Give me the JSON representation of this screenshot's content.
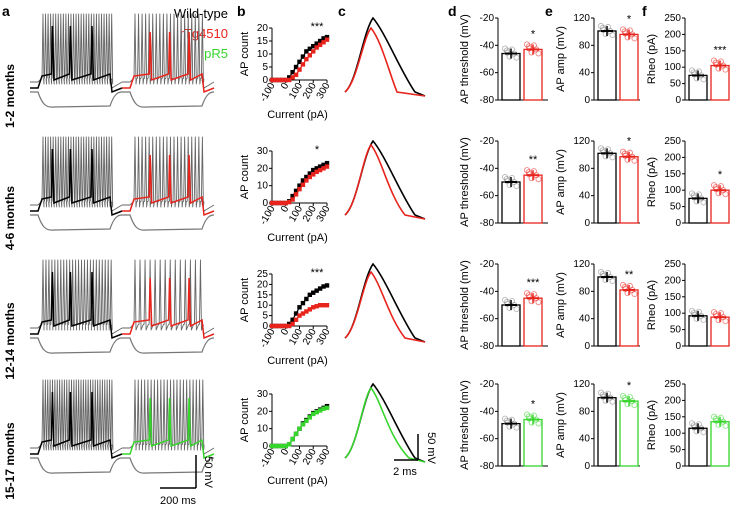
{
  "panel_letters": [
    "a",
    "b",
    "c",
    "d",
    "e",
    "f"
  ],
  "row_labels": [
    "1-2 months",
    "4-6 months",
    "12-14 months",
    "15-17 months"
  ],
  "legend": {
    "items": [
      {
        "label": "Wild-type",
        "color": "#000000"
      },
      {
        "label": "rTg4510",
        "color": "#e8231c"
      },
      {
        "label": "pR5",
        "color": "#36d52c"
      }
    ]
  },
  "scale_bars": {
    "voltage": "50 mV",
    "time": "200 ms",
    "ap_time": "2 ms",
    "ap_voltage": "50 mV"
  },
  "colors": {
    "wt": "#000000",
    "rtg": "#e8231c",
    "pr5": "#36d52c",
    "trace_gray": "#666666"
  },
  "chart_data": [
    {
      "panel": "b",
      "row": 0,
      "type": "line",
      "xlabel": "Current (pA)",
      "ylabel": "AP count",
      "xticks": [
        -100,
        0,
        100,
        200,
        300
      ],
      "yticks": [
        0,
        5,
        10,
        15,
        20
      ],
      "ylim": [
        0,
        20
      ],
      "sig": "***",
      "x": [
        -100,
        -75,
        -50,
        -25,
        0,
        25,
        50,
        75,
        100,
        125,
        150,
        175,
        200,
        225,
        250,
        275,
        300
      ],
      "series": [
        {
          "name": "Wild-type",
          "values": [
            0,
            0,
            0,
            0,
            0,
            1,
            3,
            5,
            7,
            9,
            11,
            12,
            13,
            14,
            15,
            16,
            16.5
          ]
        },
        {
          "name": "rTg4510",
          "values": [
            0,
            0,
            0,
            0,
            0,
            0,
            1,
            2,
            4,
            6,
            8,
            9.5,
            11,
            12.5,
            13.5,
            14.5,
            15.5
          ]
        }
      ]
    },
    {
      "panel": "b",
      "row": 1,
      "type": "line",
      "xlabel": "Current (pA)",
      "ylabel": "AP count",
      "xticks": [
        -100,
        0,
        100,
        200,
        300
      ],
      "yticks": [
        0,
        10,
        20,
        30
      ],
      "ylim": [
        0,
        30
      ],
      "sig": "*",
      "x": [
        -100,
        -75,
        -50,
        -25,
        0,
        25,
        50,
        75,
        100,
        125,
        150,
        175,
        200,
        225,
        250,
        275,
        300
      ],
      "series": [
        {
          "name": "Wild-type",
          "values": [
            0,
            0,
            0,
            0,
            0,
            1,
            4,
            7,
            10,
            13,
            15,
            17,
            19,
            20,
            21,
            22,
            23
          ]
        },
        {
          "name": "rTg4510",
          "values": [
            0,
            0,
            0,
            0,
            0,
            0.5,
            2,
            5,
            8,
            10.5,
            13,
            15,
            16.5,
            18,
            19,
            20,
            21
          ]
        }
      ]
    },
    {
      "panel": "b",
      "row": 2,
      "type": "line",
      "xlabel": "Current (pA)",
      "ylabel": "AP count",
      "xticks": [
        -100,
        0,
        100,
        200,
        300
      ],
      "yticks": [
        0,
        5,
        10,
        15,
        20,
        25
      ],
      "ylim": [
        0,
        25
      ],
      "sig": "***",
      "x": [
        -100,
        -75,
        -50,
        -25,
        0,
        25,
        50,
        75,
        100,
        125,
        150,
        175,
        200,
        225,
        250,
        275,
        300
      ],
      "series": [
        {
          "name": "Wild-type",
          "values": [
            0,
            0,
            0,
            0,
            0,
            1,
            3,
            6,
            9,
            11,
            13,
            15,
            16,
            17,
            18,
            19,
            19.5
          ]
        },
        {
          "name": "rTg4510",
          "values": [
            0,
            0,
            0,
            0,
            0,
            0,
            1,
            3,
            5,
            6,
            7,
            8,
            9,
            9.5,
            10,
            10,
            10
          ]
        }
      ]
    },
    {
      "panel": "b",
      "row": 3,
      "type": "line",
      "xlabel": "Current (pA)",
      "ylabel": "AP count",
      "xticks": [
        -100,
        0,
        100,
        200,
        300
      ],
      "yticks": [
        0,
        10,
        20,
        30
      ],
      "ylim": [
        0,
        30
      ],
      "sig": "",
      "x": [
        -100,
        -75,
        -50,
        -25,
        0,
        25,
        50,
        75,
        100,
        125,
        150,
        175,
        200,
        225,
        250,
        275,
        300
      ],
      "series": [
        {
          "name": "Wild-type",
          "values": [
            0,
            0,
            0,
            0,
            0,
            1,
            4,
            7,
            10,
            13,
            15,
            17,
            19,
            20,
            21,
            22,
            23
          ]
        },
        {
          "name": "pR5",
          "values": [
            0,
            0,
            0,
            0,
            0,
            1,
            4,
            7,
            10,
            12.5,
            14.5,
            16.5,
            18.5,
            19.5,
            20.5,
            21.5,
            22
          ]
        }
      ]
    },
    {
      "panel": "d",
      "row": 0,
      "type": "bar",
      "ylabel": "AP threshold (mV)",
      "yticks": [
        -80,
        -60,
        -40,
        -20
      ],
      "ylim": [
        -80,
        -20
      ],
      "sig": "*",
      "categories": [
        "Wild-type",
        "rTg4510"
      ],
      "values": [
        -46,
        -43
      ]
    },
    {
      "panel": "d",
      "row": 1,
      "type": "bar",
      "ylabel": "AP threshold (mV)",
      "yticks": [
        -80,
        -60,
        -40,
        -20
      ],
      "ylim": [
        -80,
        -20
      ],
      "sig": "**",
      "categories": [
        "Wild-type",
        "rTg4510"
      ],
      "values": [
        -50,
        -45
      ]
    },
    {
      "panel": "d",
      "row": 2,
      "type": "bar",
      "ylabel": "AP threshold (mV)",
      "yticks": [
        -80,
        -60,
        -40,
        -20
      ],
      "ylim": [
        -80,
        -20
      ],
      "sig": "***",
      "categories": [
        "Wild-type",
        "rTg4510"
      ],
      "values": [
        -50,
        -45
      ]
    },
    {
      "panel": "d",
      "row": 3,
      "type": "bar",
      "ylabel": "AP threshold (mV)",
      "yticks": [
        -80,
        -60,
        -40,
        -20
      ],
      "ylim": [
        -80,
        -20
      ],
      "sig": "*",
      "categories": [
        "Wild-type",
        "pR5"
      ],
      "values": [
        -49,
        -46
      ]
    },
    {
      "panel": "e",
      "row": 0,
      "type": "bar",
      "ylabel": "AP amp (mV)",
      "yticks": [
        0,
        40,
        80,
        120
      ],
      "ylim": [
        0,
        120
      ],
      "sig": "*",
      "categories": [
        "Wild-type",
        "rTg4510"
      ],
      "values": [
        101,
        96
      ]
    },
    {
      "panel": "e",
      "row": 1,
      "type": "bar",
      "ylabel": "AP amp (mV)",
      "yticks": [
        0,
        40,
        80,
        120
      ],
      "ylim": [
        0,
        120
      ],
      "sig": "*",
      "categories": [
        "Wild-type",
        "rTg4510"
      ],
      "values": [
        102,
        97
      ]
    },
    {
      "panel": "e",
      "row": 2,
      "type": "bar",
      "ylabel": "AP amp (mV)",
      "yticks": [
        0,
        40,
        80,
        120
      ],
      "ylim": [
        0,
        120
      ],
      "sig": "**",
      "categories": [
        "Wild-type",
        "rTg4510"
      ],
      "values": [
        101,
        82
      ]
    },
    {
      "panel": "e",
      "row": 3,
      "type": "bar",
      "ylabel": "AP amp (mV)",
      "yticks": [
        0,
        40,
        80,
        120
      ],
      "ylim": [
        0,
        120
      ],
      "sig": "*",
      "categories": [
        "Wild-type",
        "pR5"
      ],
      "values": [
        100,
        95
      ]
    },
    {
      "panel": "f",
      "row": 0,
      "type": "bar",
      "ylabel": "Rheo (pA)",
      "yticks": [
        0,
        50,
        100,
        150,
        200,
        250
      ],
      "ylim": [
        0,
        250
      ],
      "sig": "***",
      "categories": [
        "Wild-type",
        "rTg4510"
      ],
      "values": [
        75,
        105
      ]
    },
    {
      "panel": "f",
      "row": 1,
      "type": "bar",
      "ylabel": "Rheo (pA)",
      "yticks": [
        0,
        50,
        100,
        150,
        200,
        250
      ],
      "ylim": [
        0,
        250
      ],
      "sig": "*",
      "categories": [
        "Wild-type",
        "rTg4510"
      ],
      "values": [
        75,
        100
      ]
    },
    {
      "panel": "f",
      "row": 2,
      "type": "bar",
      "ylabel": "Rheo (pA)",
      "yticks": [
        0,
        50,
        100,
        150,
        200,
        250
      ],
      "ylim": [
        0,
        250
      ],
      "sig": "",
      "categories": [
        "Wild-type",
        "rTg4510"
      ],
      "values": [
        92,
        88
      ]
    },
    {
      "panel": "f",
      "row": 3,
      "type": "bar",
      "ylabel": "Rheo (pA)",
      "yticks": [
        0,
        50,
        100,
        150,
        200,
        250
      ],
      "ylim": [
        0,
        250
      ],
      "sig": "",
      "categories": [
        "Wild-type",
        "pR5"
      ],
      "values": [
        115,
        135
      ]
    }
  ]
}
